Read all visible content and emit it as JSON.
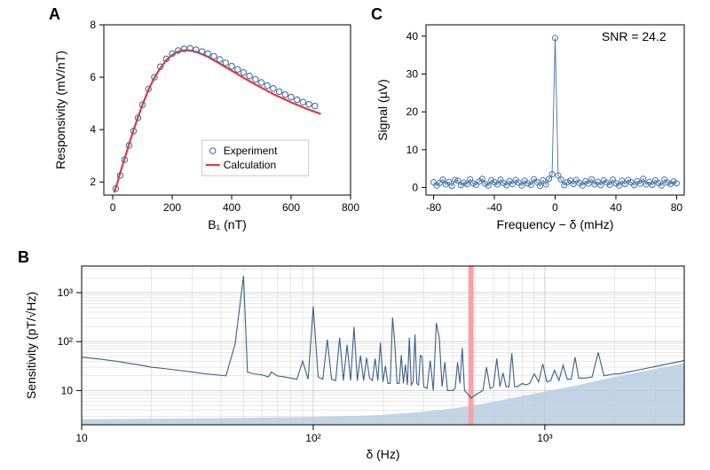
{
  "panelA": {
    "label": "A",
    "type": "scatter+line",
    "xlabel": "B₁ (nT)",
    "ylabel": "Responsivity (mV/nT)",
    "x_ticks": [
      0,
      200,
      400,
      600,
      800
    ],
    "y_ticks": [
      2,
      4,
      6,
      8
    ],
    "xlim": [
      -30,
      800
    ],
    "ylim": [
      1.5,
      8
    ],
    "experiment": {
      "label": "Experiment",
      "marker_color": "#4472a8",
      "marker_size": 3.2,
      "x": [
        10,
        25,
        40,
        55,
        70,
        85,
        100,
        120,
        140,
        160,
        180,
        200,
        220,
        240,
        260,
        280,
        300,
        320,
        340,
        360,
        380,
        400,
        420,
        440,
        460,
        480,
        500,
        520,
        540,
        560,
        580,
        600,
        620,
        640,
        660,
        680
      ],
      "y": [
        1.75,
        2.25,
        2.85,
        3.4,
        3.95,
        4.45,
        4.95,
        5.55,
        6.0,
        6.4,
        6.7,
        6.9,
        7.02,
        7.08,
        7.1,
        7.05,
        6.98,
        6.9,
        6.8,
        6.68,
        6.55,
        6.42,
        6.3,
        6.18,
        6.05,
        5.92,
        5.8,
        5.68,
        5.57,
        5.45,
        5.34,
        5.24,
        5.14,
        5.05,
        4.97,
        4.9
      ]
    },
    "calculation": {
      "label": "Calculation",
      "line_color": "#e8363a",
      "line_width": 2.2,
      "x": [
        5,
        15,
        25,
        40,
        55,
        70,
        85,
        100,
        120,
        140,
        160,
        180,
        200,
        220,
        240,
        260,
        280,
        300,
        320,
        340,
        360,
        380,
        400,
        420,
        440,
        460,
        480,
        500,
        520,
        540,
        560,
        580,
        600,
        620,
        640,
        660,
        680,
        700
      ],
      "y": [
        1.6,
        1.95,
        2.35,
        2.9,
        3.45,
        3.98,
        4.48,
        4.95,
        5.52,
        5.98,
        6.35,
        6.65,
        6.85,
        6.98,
        7.03,
        7.02,
        6.97,
        6.88,
        6.78,
        6.65,
        6.52,
        6.38,
        6.25,
        6.12,
        5.98,
        5.85,
        5.72,
        5.6,
        5.48,
        5.36,
        5.25,
        5.15,
        5.04,
        4.95,
        4.85,
        4.76,
        4.68,
        4.6
      ]
    }
  },
  "panelC": {
    "label": "C",
    "type": "scatter+line",
    "xlabel": "Frequency − δ (mHz)",
    "ylabel": "Signal (µV)",
    "annotation": "SNR = 24.2",
    "x_ticks": [
      -80,
      -40,
      0,
      40,
      80
    ],
    "y_ticks": [
      0,
      10,
      20,
      30,
      40
    ],
    "xlim": [
      -85,
      85
    ],
    "ylim": [
      -2,
      43
    ],
    "marker_color": "#4472a8",
    "line_color": "#4472a8",
    "marker_size": 3.0,
    "x": [
      -80,
      -78,
      -76,
      -74,
      -72,
      -70,
      -68,
      -66,
      -64,
      -62,
      -60,
      -58,
      -56,
      -54,
      -52,
      -50,
      -48,
      -46,
      -44,
      -42,
      -40,
      -38,
      -36,
      -34,
      -32,
      -30,
      -28,
      -26,
      -24,
      -22,
      -20,
      -18,
      -16,
      -14,
      -12,
      -10,
      -8,
      -6,
      -4,
      -2,
      0,
      2,
      4,
      6,
      8,
      10,
      12,
      14,
      16,
      18,
      20,
      22,
      24,
      26,
      28,
      30,
      32,
      34,
      36,
      38,
      40,
      42,
      44,
      46,
      48,
      50,
      52,
      54,
      56,
      58,
      60,
      62,
      64,
      66,
      68,
      70,
      72,
      74,
      76,
      78,
      80
    ],
    "y": [
      1.4,
      0.5,
      1.2,
      2.1,
      0.8,
      1.5,
      0.4,
      2.0,
      1.8,
      0.6,
      1.3,
      0.9,
      2.2,
      1.1,
      0.7,
      1.6,
      2.3,
      1.0,
      0.5,
      1.9,
      1.4,
      0.8,
      2.1,
      1.2,
      0.6,
      1.7,
      0.9,
      2.0,
      1.3,
      0.5,
      1.8,
      1.1,
      0.7,
      2.2,
      1.5,
      0.4,
      1.9,
      0.8,
      2.3,
      3.5,
      39.5,
      3.2,
      2.1,
      0.6,
      1.4,
      1.8,
      0.9,
      2.0,
      1.2,
      0.5,
      1.7,
      1.0,
      2.2,
      0.8,
      1.5,
      0.6,
      1.9,
      1.3,
      0.7,
      2.1,
      1.1,
      0.5,
      1.8,
      0.9,
      2.0,
      1.4,
      0.6,
      1.7,
      1.0,
      2.3,
      0.8,
      1.5,
      0.7,
      1.9,
      1.2,
      0.5,
      2.1,
      1.3,
      0.9,
      1.6,
      1.1
    ]
  },
  "panelB": {
    "label": "B",
    "type": "line-log",
    "xlabel": "δ (Hz)",
    "ylabel": "Sensitivity (pT/√Hz)",
    "x_ticks_major": [
      10,
      100,
      1000
    ],
    "x_tick_labels": [
      "10",
      "10²",
      "10³"
    ],
    "y_ticks_major": [
      10,
      100,
      1000
    ],
    "y_tick_labels": [
      "10",
      "10²",
      "10³"
    ],
    "xlim": [
      10,
      4000
    ],
    "ylim": [
      2,
      3500
    ],
    "line_color": "#3d5f86",
    "line_width": 1.1,
    "grid_color": "#d0d0d0",
    "marker_band": {
      "x": 480,
      "color": "#f4a3a8",
      "width": 6
    },
    "shaded_area": {
      "color": "#b9cce0",
      "x": [
        10,
        30,
        60,
        100,
        150,
        200,
        300,
        400,
        500,
        700,
        1000,
        1400,
        2000,
        2800,
        4000
      ],
      "y_top": [
        2.6,
        2.7,
        2.8,
        2.9,
        3.0,
        3.2,
        3.7,
        4.3,
        5.0,
        6.8,
        9.5,
        13,
        19,
        26,
        36
      ]
    },
    "data": {
      "x": [
        10,
        12,
        14,
        16,
        18,
        20,
        23,
        26,
        30,
        34,
        38,
        42,
        46,
        50,
        52,
        55,
        60,
        62,
        64,
        66,
        70,
        75,
        80,
        85,
        90,
        95,
        100,
        105,
        110,
        115,
        120,
        125,
        130,
        135,
        140,
        145,
        150,
        155,
        160,
        165,
        170,
        175,
        180,
        185,
        190,
        195,
        200,
        205,
        210,
        215,
        220,
        225,
        230,
        235,
        240,
        245,
        250,
        255,
        260,
        265,
        270,
        275,
        280,
        285,
        290,
        295,
        300,
        310,
        320,
        330,
        340,
        350,
        360,
        370,
        380,
        390,
        400,
        410,
        420,
        430,
        440,
        450,
        460,
        470,
        480,
        490,
        500,
        520,
        540,
        560,
        580,
        600,
        620,
        640,
        660,
        680,
        700,
        720,
        740,
        760,
        780,
        800,
        830,
        860,
        900,
        940,
        980,
        1020,
        1060,
        1100,
        1150,
        1200,
        1250,
        1300,
        1350,
        1400,
        1500,
        1600,
        1700,
        1800,
        1900,
        2000,
        2100,
        2200,
        2300,
        2400,
        2500,
        2600,
        2700,
        2800,
        2900,
        3000,
        3100,
        3200,
        3300,
        3400,
        3500,
        3600,
        3700,
        3800,
        3900,
        4000
      ],
      "y": [
        48,
        44,
        40,
        36,
        33,
        30,
        28,
        26,
        24,
        22,
        21,
        20,
        90,
        2200,
        24,
        22,
        21,
        20,
        19,
        24,
        20,
        19,
        18,
        17,
        40,
        17,
        520,
        19,
        17,
        110,
        17,
        16,
        120,
        16,
        86,
        16,
        200,
        16,
        52,
        16,
        47,
        18,
        16,
        45,
        16,
        95,
        15,
        32,
        14,
        14,
        310,
        92,
        14,
        14,
        53,
        14,
        34,
        13,
        120,
        13,
        15,
        140,
        14,
        13,
        52,
        50,
        12,
        11,
        41,
        10,
        240,
        120,
        12,
        38,
        10,
        10,
        10,
        11,
        38,
        14,
        74,
        10,
        9,
        8,
        7,
        7.5,
        8,
        9,
        10,
        30,
        11,
        12,
        45,
        12,
        23,
        12,
        12,
        58,
        12,
        12,
        13,
        14,
        13,
        14,
        22,
        15,
        35,
        15,
        16,
        26,
        16,
        33,
        17,
        17,
        48,
        18,
        18,
        19,
        60,
        20,
        21,
        22,
        22,
        23,
        24,
        25,
        26,
        27,
        28,
        29,
        30,
        31,
        32,
        33,
        34,
        35,
        36,
        37,
        38,
        39,
        40,
        42
      ]
    }
  },
  "colors": {
    "background": "#ffffff",
    "axis": "#000000",
    "grid": "#d0d0d0"
  },
  "fonts": {
    "panel_label_size": 18,
    "tick_size": 12,
    "axis_label_size": 14
  }
}
